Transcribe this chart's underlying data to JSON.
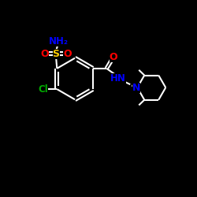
{
  "background_color": "#000000",
  "bond_color": "#ffffff",
  "bond_width": 1.5,
  "atom_colors": {
    "C": "#ffffff",
    "N": "#0000ff",
    "O": "#ff0000",
    "S": "#ffcc00",
    "Cl": "#00aa00",
    "H": "#0000ff"
  },
  "fig_size": [
    2.5,
    2.5
  ],
  "dpi": 100
}
